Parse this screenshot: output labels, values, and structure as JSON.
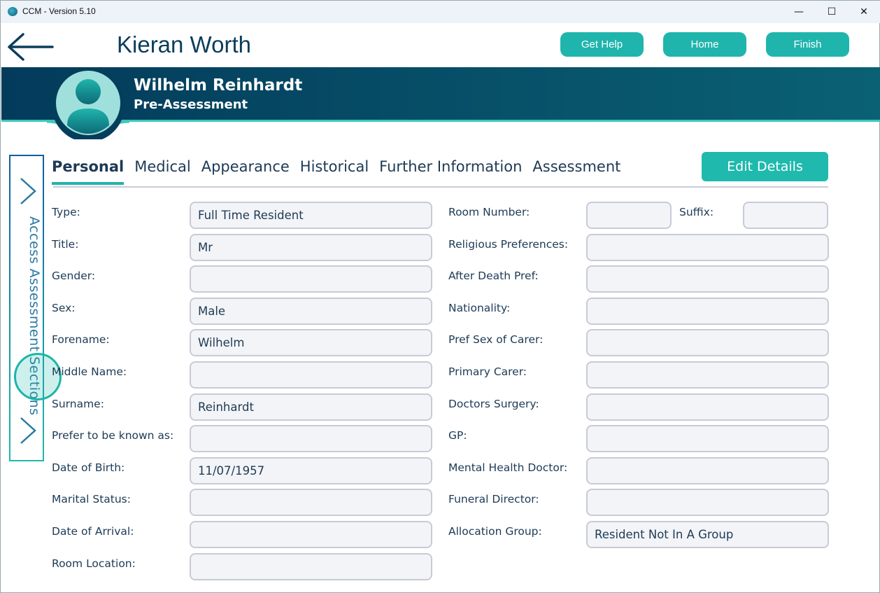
{
  "window": {
    "title": "CCM - Version 5.10",
    "minimize": "—",
    "maximize": "☐",
    "close": "✕"
  },
  "header": {
    "user": "Kieran Worth",
    "buttons": [
      "Get Help",
      "Home",
      "Finish"
    ]
  },
  "patient": {
    "name": "Wilhelm Reinhardt",
    "stage": "Pre-Assessment"
  },
  "sidebar": {
    "label": "Access Assessment Sections"
  },
  "tabs": [
    "Personal",
    "Medical",
    "Appearance",
    "Historical",
    "Further Information",
    "Assessment"
  ],
  "active_tab": "Personal",
  "edit_button": "Edit Details",
  "left_fields": [
    {
      "label": "Type:",
      "value": "Full Time Resident"
    },
    {
      "label": "Title:",
      "value": "Mr"
    },
    {
      "label": "Gender:",
      "value": ""
    },
    {
      "label": "Sex:",
      "value": "Male"
    },
    {
      "label": "Forename:",
      "value": "Wilhelm"
    },
    {
      "label": "Middle Name:",
      "value": ""
    },
    {
      "label": "Surname:",
      "value": "Reinhardt"
    },
    {
      "label": "Prefer to be known as:",
      "value": ""
    },
    {
      "label": "Date of Birth:",
      "value": "11/07/1957"
    },
    {
      "label": "Marital Status:",
      "value": ""
    },
    {
      "label": "Date of Arrival:",
      "value": ""
    },
    {
      "label": "Room Location:",
      "value": ""
    }
  ],
  "room": {
    "label": "Room Number:",
    "value": "",
    "suffix_label": "Suffix:",
    "suffix_value": ""
  },
  "right_fields": [
    {
      "label": "Religious Preferences:",
      "value": ""
    },
    {
      "label": "After Death Pref:",
      "value": ""
    },
    {
      "label": "Nationality:",
      "value": ""
    },
    {
      "label": "Pref Sex of Carer:",
      "value": ""
    },
    {
      "label": "Primary Carer:",
      "value": ""
    },
    {
      "label": "Doctors Surgery:",
      "value": ""
    },
    {
      "label": "GP:",
      "value": ""
    },
    {
      "label": "Mental Health Doctor:",
      "value": ""
    },
    {
      "label": "Funeral Director:",
      "value": ""
    },
    {
      "label": "Allocation Group:",
      "value": "Resident Not In A Group"
    }
  ],
  "colors": {
    "accent": "#1fb9ad",
    "banner": "#033b5b",
    "text": "#1d3a55"
  }
}
